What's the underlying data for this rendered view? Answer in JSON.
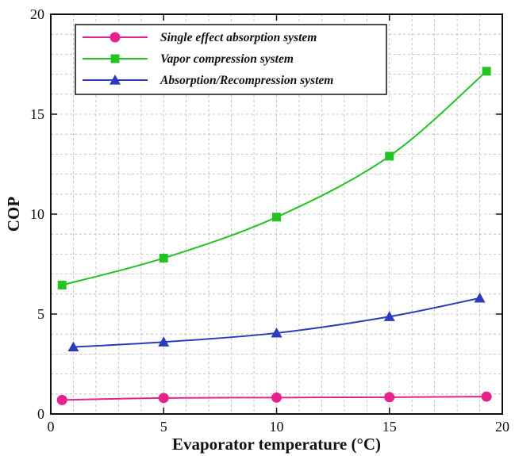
{
  "chart_data": {
    "type": "line",
    "title": "",
    "xlabel": "Evaporator temperature (°C)",
    "ylabel": "COP",
    "xlim": [
      0,
      20
    ],
    "ylim": [
      0,
      20
    ],
    "xticks": [
      0,
      5,
      10,
      15,
      20
    ],
    "yticks": [
      0,
      5,
      10,
      15,
      20
    ],
    "grid": true,
    "legend_position": "top-left",
    "series": [
      {
        "name": "Single effect absorption system",
        "color": "#e6228c",
        "marker": "circle",
        "x": [
          0.5,
          5,
          10,
          15,
          19.3
        ],
        "y": [
          0.7,
          0.8,
          0.82,
          0.84,
          0.87
        ]
      },
      {
        "name": "Vapor compression system",
        "color": "#22c322",
        "marker": "square",
        "x": [
          0.5,
          5,
          10,
          15,
          19.3
        ],
        "y": [
          6.45,
          7.8,
          9.85,
          12.9,
          17.15
        ]
      },
      {
        "name": "Absorption/Recompression system",
        "color": "#2b3bbd",
        "marker": "triangle",
        "x": [
          1,
          5,
          10,
          15,
          19
        ],
        "y": [
          3.35,
          3.6,
          4.05,
          4.87,
          5.8
        ]
      }
    ]
  }
}
